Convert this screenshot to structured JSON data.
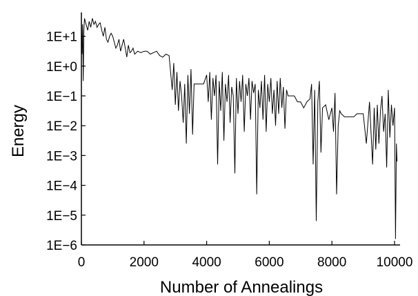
{
  "chart_data": {
    "type": "line",
    "title": "",
    "xlabel": "Number of Annealings",
    "ylabel": "Energy",
    "xlim": [
      0,
      10000
    ],
    "ylim_log10": [
      -6,
      1.8
    ],
    "yscale": "log",
    "grid": false,
    "line_color": "#000000",
    "x_ticks": [
      0,
      2000,
      4000,
      6000,
      8000,
      10000
    ],
    "x_tick_labels": [
      "0",
      "2000",
      "4000",
      "6000",
      "8000",
      "10000"
    ],
    "y_ticks_log10": [
      1,
      0,
      -1,
      -2,
      -3,
      -4,
      -5,
      -6
    ],
    "y_tick_labels": [
      "1E+1",
      "1E+0",
      "1E−1",
      "1E−2",
      "1E−3",
      "1E−4",
      "1E−5",
      "1E−6"
    ],
    "series": [
      {
        "values_description_free": true,
        "x": [
          0,
          20,
          40,
          60,
          80,
          100,
          150,
          200,
          250,
          300,
          350,
          400,
          450,
          500,
          550,
          600,
          650,
          700,
          750,
          800,
          850,
          900,
          950,
          1000,
          1050,
          1100,
          1150,
          1200,
          1250,
          1300,
          1350,
          1400,
          1450,
          1500,
          1550,
          1600,
          1650,
          1700,
          1800,
          1900,
          2000,
          2100,
          2200,
          2300,
          2400,
          2500,
          2600,
          2700,
          2800,
          2900,
          2950,
          3000,
          3050,
          3100,
          3150,
          3200,
          3250,
          3300,
          3350,
          3400,
          3450,
          3500,
          3550,
          3600,
          3700,
          3800,
          3900,
          4000,
          4050,
          4100,
          4150,
          4200,
          4250,
          4300,
          4350,
          4400,
          4450,
          4500,
          4550,
          4600,
          4650,
          4700,
          4750,
          4800,
          4850,
          4900,
          4950,
          5000,
          5050,
          5100,
          5150,
          5200,
          5250,
          5300,
          5350,
          5400,
          5450,
          5500,
          5550,
          5600,
          5650,
          5700,
          5750,
          5800,
          5850,
          5900,
          5950,
          6000,
          6050,
          6100,
          6150,
          6200,
          6250,
          6300,
          6350,
          6400,
          6450,
          6500,
          6550,
          6600,
          6700,
          6800,
          6900,
          7000,
          7100,
          7200,
          7300,
          7350,
          7400,
          7450,
          7500,
          7550,
          7600,
          7650,
          7700,
          7800,
          7900,
          8000,
          8050,
          8100,
          8150,
          8200,
          8250,
          8300,
          8400,
          8500,
          8600,
          8700,
          8800,
          8900,
          9000,
          9100,
          9200,
          9300,
          9350,
          9400,
          9450,
          9500,
          9550,
          9600,
          9650,
          9700,
          9750,
          9800,
          9850,
          9900,
          9950,
          10000,
          10030,
          10060,
          10080
        ],
        "log10_values": [
          1.5,
          0.4,
          1.4,
          -0.5,
          1.2,
          1.6,
          1.4,
          1.2,
          1.5,
          1.3,
          1.6,
          1.4,
          1.5,
          1.3,
          1.4,
          1.45,
          1.2,
          1.0,
          1.3,
          0.9,
          0.8,
          1.0,
          1.1,
          1.0,
          0.8,
          0.6,
          0.7,
          0.9,
          0.5,
          0.7,
          0.9,
          0.6,
          0.3,
          0.7,
          0.45,
          0.5,
          0.6,
          0.4,
          0.5,
          0.45,
          0.5,
          0.5,
          0.4,
          0.45,
          0.5,
          0.35,
          0.3,
          0.4,
          0.35,
          -0.8,
          0.1,
          -1.3,
          -0.2,
          -1.5,
          -0.5,
          -1.0,
          -1.9,
          -0.6,
          -2.6,
          -0.3,
          -1.6,
          -0.1,
          -2.3,
          -0.6,
          -0.6,
          -0.6,
          -0.6,
          -0.3,
          -1.2,
          -0.2,
          -1.8,
          -0.4,
          -1.0,
          -0.3,
          -3.3,
          -0.5,
          -1.5,
          -0.2,
          -2.5,
          -0.6,
          -1.2,
          -0.3,
          -1.9,
          -0.7,
          -1.0,
          -3.6,
          -0.4,
          -1.6,
          -0.5,
          -1.2,
          -0.3,
          -2.2,
          -0.6,
          -1.0,
          -0.4,
          -1.8,
          -0.5,
          -0.9,
          -0.6,
          -4.3,
          -0.8,
          -1.4,
          -0.5,
          -1.8,
          -0.3,
          -2.2,
          -0.6,
          -1.2,
          -0.4,
          -1.6,
          -0.8,
          -2.0,
          -0.5,
          -1.6,
          -0.4,
          -1.4,
          -0.7,
          -2.1,
          -0.8,
          -1.0,
          -1.0,
          -1.0,
          -1.2,
          -1.2,
          -1.4,
          -1.2,
          -1.1,
          -0.6,
          -3.3,
          -0.8,
          -5.2,
          -1.2,
          -0.5,
          -2.9,
          -1.4,
          -1.3,
          -1.8,
          -1.4,
          -2.2,
          -0.9,
          -4.3,
          -2.0,
          -1.5,
          -1.6,
          -1.7,
          -1.7,
          -1.7,
          -1.7,
          -1.6,
          -1.6,
          -1.6,
          -2.6,
          -1.2,
          -3.3,
          -1.4,
          -2.8,
          -1.3,
          -2.6,
          -1.5,
          -1.0,
          -2.2,
          -1.6,
          -3.4,
          -0.8,
          -2.4,
          -1.3,
          -2.0,
          -1.4,
          -5.8,
          -2.6,
          -3.2
        ]
      }
    ]
  }
}
